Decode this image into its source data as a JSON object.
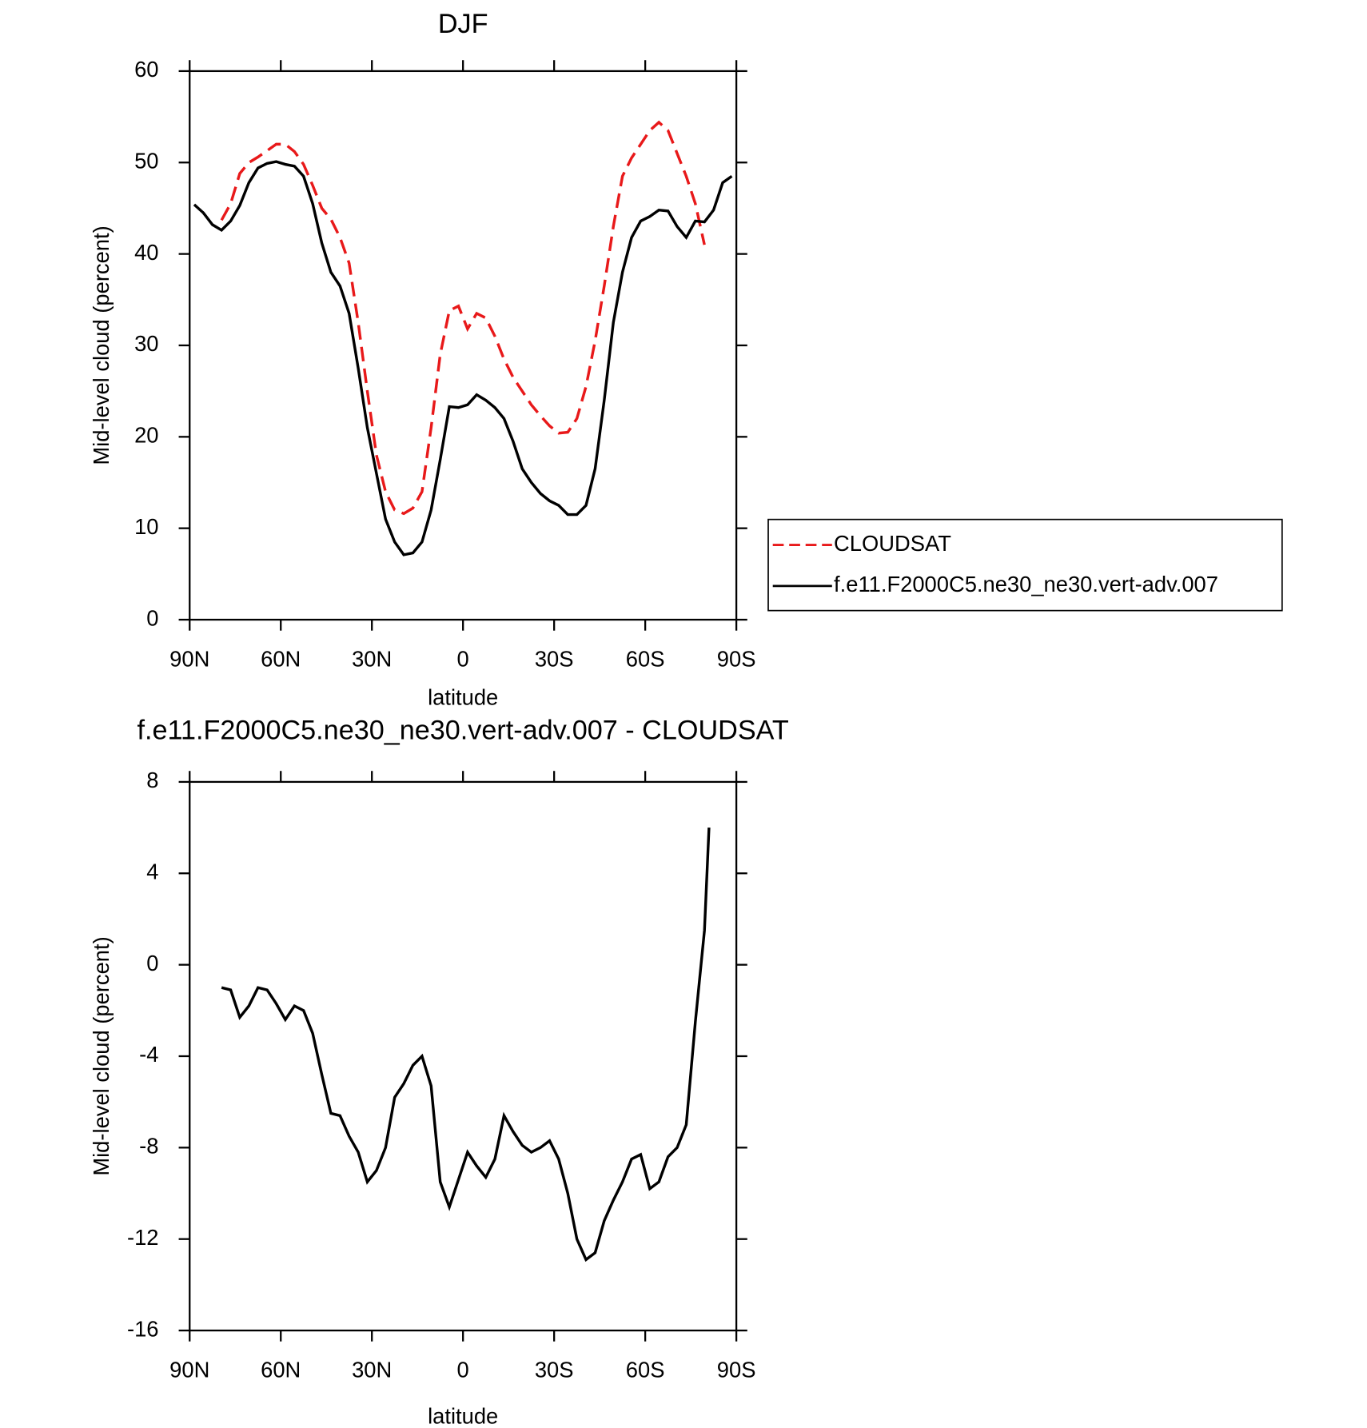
{
  "chart_data": [
    {
      "type": "line",
      "title": "DJF",
      "x_label": "latitude",
      "y_label": "Mid-level cloud (percent)",
      "x": [
        88.5,
        85.5,
        82.5,
        79.5,
        76.5,
        73.5,
        70.5,
        67.5,
        64.5,
        61.5,
        58.5,
        55.5,
        52.5,
        49.5,
        46.5,
        43.5,
        40.5,
        37.5,
        34.5,
        31.5,
        28.5,
        25.5,
        22.5,
        19.5,
        16.5,
        13.5,
        10.5,
        7.5,
        4.5,
        1.5,
        -1.5,
        -4.5,
        -7.5,
        -10.5,
        -13.5,
        -16.5,
        -19.5,
        -22.5,
        -25.5,
        -28.5,
        -31.5,
        -34.5,
        -37.5,
        -40.5,
        -43.5,
        -46.5,
        -49.5,
        -52.5,
        -55.5,
        -58.5,
        -61.5,
        -64.5,
        -67.5,
        -70.5,
        -73.5,
        -76.5,
        -79.5,
        -82.5,
        -85.5,
        -88.5
      ],
      "series": [
        {
          "name": "CLOUDSAT",
          "color": "#e8191a",
          "style": "dashed",
          "values": [
            null,
            null,
            null,
            43.7,
            45.5,
            48.8,
            50.0,
            50.6,
            51.3,
            52.0,
            52.0,
            51.2,
            49.8,
            47.5,
            45.0,
            43.8,
            41.8,
            39.0,
            32.5,
            25.0,
            18.0,
            14.0,
            12.0,
            11.6,
            12.2,
            14.0,
            21.0,
            29.0,
            33.8,
            34.3,
            31.8,
            33.5,
            33.0,
            31.0,
            28.5,
            26.5,
            25.0,
            23.5,
            22.3,
            21.2,
            20.4,
            20.5,
            22.0,
            25.5,
            30.5,
            36.5,
            43.0,
            48.5,
            50.5,
            52.0,
            53.5,
            54.4,
            53.5,
            51.0,
            48.5,
            45.5,
            41.0,
            null,
            null,
            null
          ]
        },
        {
          "name": "f.e11.F2000C5.ne30_ne30.vert-adv.007",
          "color": "#000000",
          "style": "solid",
          "values": [
            45.4,
            44.5,
            43.2,
            42.6,
            43.6,
            45.3,
            47.8,
            49.4,
            49.9,
            50.1,
            49.8,
            49.6,
            48.5,
            45.5,
            41.2,
            38.0,
            36.5,
            33.5,
            27.5,
            21.0,
            16.0,
            11.0,
            8.5,
            7.1,
            7.3,
            8.5,
            12.0,
            17.5,
            23.3,
            23.2,
            23.5,
            24.6,
            24.0,
            23.2,
            22.0,
            19.5,
            16.5,
            15.0,
            13.8,
            13.0,
            12.5,
            11.5,
            11.5,
            12.5,
            16.5,
            24.0,
            32.5,
            38.0,
            41.8,
            43.6,
            44.1,
            44.8,
            44.7,
            43.0,
            41.8,
            43.6,
            43.5,
            44.8,
            47.8,
            48.5
          ]
        }
      ],
      "xlim": [
        90,
        -90
      ],
      "xticks": [
        {
          "value": 90,
          "label": "90N"
        },
        {
          "value": 60,
          "label": "60N"
        },
        {
          "value": 30,
          "label": "30N"
        },
        0,
        {
          "value": -30,
          "label": "30S"
        },
        {
          "value": -60,
          "label": "60S"
        },
        {
          "value": -90,
          "label": "90S"
        }
      ],
      "ylim": [
        0,
        60
      ],
      "yticks": [
        0,
        10,
        20,
        30,
        40,
        50,
        60
      ],
      "legend": "right"
    },
    {
      "type": "line",
      "title": "f.e11.F2000C5.ne30_ne30.vert-adv.007 - CLOUDSAT",
      "x_label": "latitude",
      "y_label": "Mid-level cloud (percent)",
      "x": [
        79.5,
        76.5,
        73.5,
        70.5,
        67.5,
        64.5,
        61.5,
        58.5,
        55.5,
        52.5,
        49.5,
        46.5,
        43.5,
        40.5,
        37.5,
        34.5,
        31.5,
        28.5,
        25.5,
        22.5,
        19.5,
        16.5,
        13.5,
        10.5,
        7.5,
        4.5,
        1.5,
        -1.5,
        -4.5,
        -7.5,
        -10.5,
        -13.5,
        -16.5,
        -19.5,
        -22.5,
        -25.5,
        -28.5,
        -31.5,
        -34.5,
        -37.5,
        -40.5,
        -43.5,
        -46.5,
        -49.5,
        -52.5,
        -55.5,
        -58.5,
        -61.5,
        -64.5,
        -67.5,
        -70.5,
        -73.5,
        -76.5,
        -79.5,
        -81
      ],
      "series": [
        {
          "color": "#000000",
          "style": "solid",
          "values": [
            -1.0,
            -1.1,
            -2.3,
            -1.8,
            -1.0,
            -1.1,
            -1.7,
            -2.4,
            -1.8,
            -2.0,
            -3.0,
            -4.8,
            -6.5,
            -6.6,
            -7.5,
            -8.2,
            -9.5,
            -9.0,
            -8.0,
            -5.8,
            -5.2,
            -4.4,
            -4.0,
            -5.3,
            -9.5,
            -10.6,
            -9.4,
            -8.2,
            -8.8,
            -9.3,
            -8.5,
            -6.6,
            -7.3,
            -7.9,
            -8.2,
            -8.0,
            -7.7,
            -8.5,
            -10.0,
            -12.0,
            -12.9,
            -12.6,
            -11.2,
            -10.3,
            -9.5,
            -8.5,
            -8.3,
            -9.8,
            -9.5,
            -8.4,
            -8.0,
            -7.0,
            -2.5,
            1.5,
            6.0
          ]
        }
      ],
      "xlim": [
        90,
        -90
      ],
      "xticks": [
        {
          "value": 90,
          "label": "90N"
        },
        {
          "value": 60,
          "label": "60N"
        },
        {
          "value": 30,
          "label": "30N"
        },
        0,
        {
          "value": -30,
          "label": "30S"
        },
        {
          "value": -60,
          "label": "60S"
        },
        {
          "value": -90,
          "label": "90S"
        }
      ],
      "ylim": [
        -16,
        8
      ],
      "yticks": [
        -16,
        -12,
        -8,
        -4,
        0,
        4,
        8
      ]
    }
  ]
}
